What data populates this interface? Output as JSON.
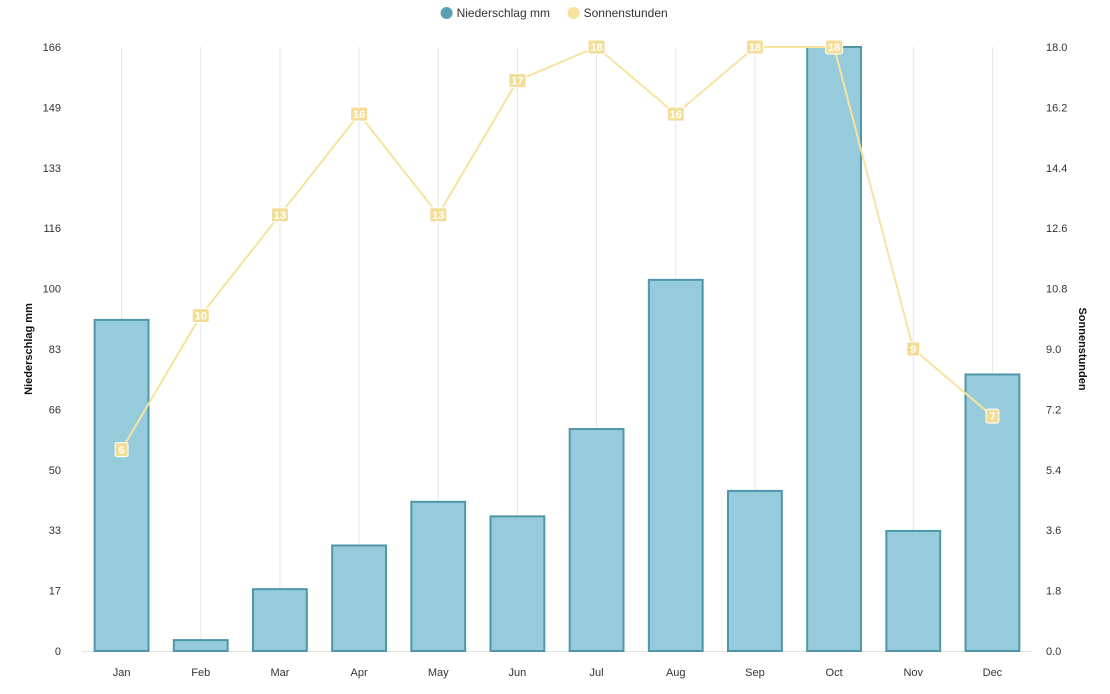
{
  "chart_data": {
    "type": "bar",
    "categories": [
      "Jan",
      "Feb",
      "Mar",
      "Apr",
      "May",
      "Jun",
      "Jul",
      "Aug",
      "Sep",
      "Oct",
      "Nov",
      "Dec"
    ],
    "series": [
      {
        "name": "Niederschlag mm",
        "type": "bar",
        "axis": "left",
        "color": "#96cbdb",
        "stroke": "#4f97a8",
        "legend_color": "#5a9fb2",
        "values": [
          91,
          3,
          17,
          29,
          41,
          37,
          61,
          102,
          44,
          166,
          33,
          76
        ]
      },
      {
        "name": "Sonnenstunden",
        "type": "line",
        "axis": "right",
        "color": "#f7e3a0",
        "label_bg": "#f3de97",
        "values": [
          6,
          10,
          13,
          16,
          13,
          17,
          18,
          16,
          18,
          18,
          9,
          7
        ]
      }
    ],
    "ylabel": "Niederschlag mm",
    "y2label": "Sonnenstunden",
    "ylim": [
      0,
      166
    ],
    "y2lim": [
      0,
      18
    ],
    "yticks": [
      "0",
      "17",
      "33",
      "50",
      "66",
      "83",
      "100",
      "116",
      "133",
      "149",
      "166"
    ],
    "y2ticks": [
      "0.0",
      "1.8",
      "3.6",
      "5.4",
      "7.2",
      "9.0",
      "10.8",
      "12.6",
      "14.4",
      "16.2",
      "18.0"
    ],
    "grid": "vertical",
    "legend_position": "top-center"
  }
}
